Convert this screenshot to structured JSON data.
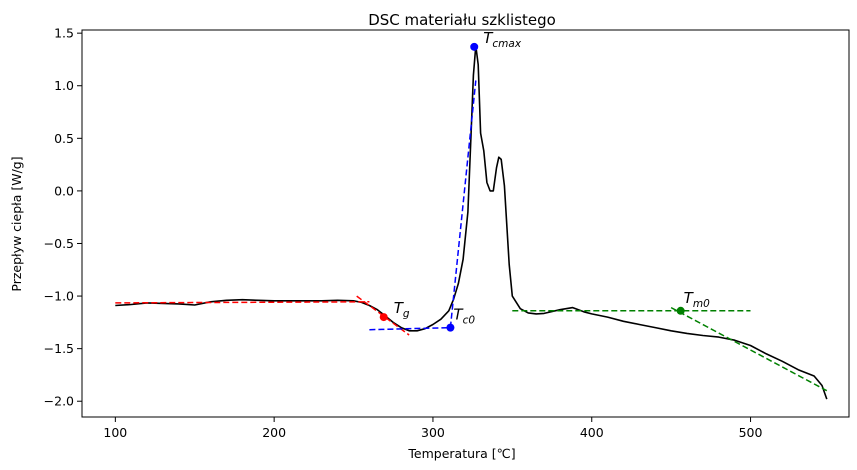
{
  "chart_data": {
    "type": "line",
    "title": "DSC materiału szklistego",
    "xlabel": "Temperatura [℃]",
    "ylabel": "Przepływ ciepła [W/g]",
    "xlim": [
      79,
      562
    ],
    "ylim": [
      -2.15,
      1.53
    ],
    "xticks": [
      100,
      200,
      300,
      400,
      500
    ],
    "yticks": [
      -2.0,
      -1.5,
      -1.0,
      -0.5,
      0.0,
      0.5,
      1.0,
      1.5
    ],
    "xtick_labels": [
      "100",
      "200",
      "300",
      "400",
      "500"
    ],
    "ytick_labels": [
      "−2.0",
      "−1.5",
      "−1.0",
      "−0.5",
      "0.0",
      "0.5",
      "1.0",
      "1.5"
    ],
    "grid": false,
    "series": [
      {
        "color": "#000000",
        "style": "solid",
        "x": [
          100,
          110,
          120,
          130,
          140,
          150,
          160,
          170,
          180,
          190,
          200,
          210,
          220,
          230,
          240,
          250,
          255,
          260,
          265,
          270,
          275,
          280,
          285,
          290,
          295,
          300,
          305,
          310,
          313,
          316,
          319,
          322,
          324,
          325.5,
          327,
          328.5,
          330,
          332,
          334,
          336,
          338,
          340,
          341.5,
          343,
          345,
          348,
          350,
          355,
          360,
          365,
          370,
          380,
          388,
          395,
          400,
          410,
          420,
          430,
          440,
          450,
          460,
          470,
          480,
          490,
          500,
          510,
          520,
          530,
          540,
          545,
          548
        ],
        "y": [
          -1.09,
          -1.08,
          -1.065,
          -1.07,
          -1.075,
          -1.085,
          -1.055,
          -1.04,
          -1.035,
          -1.04,
          -1.045,
          -1.045,
          -1.045,
          -1.045,
          -1.04,
          -1.045,
          -1.06,
          -1.09,
          -1.13,
          -1.19,
          -1.25,
          -1.3,
          -1.33,
          -1.33,
          -1.31,
          -1.27,
          -1.22,
          -1.14,
          -1.03,
          -0.88,
          -0.65,
          -0.2,
          0.55,
          1.1,
          1.38,
          1.2,
          0.55,
          0.38,
          0.08,
          0.0,
          0.0,
          0.22,
          0.32,
          0.3,
          0.05,
          -0.7,
          -1.0,
          -1.12,
          -1.16,
          -1.17,
          -1.165,
          -1.13,
          -1.11,
          -1.15,
          -1.17,
          -1.2,
          -1.24,
          -1.27,
          -1.3,
          -1.33,
          -1.355,
          -1.375,
          -1.39,
          -1.42,
          -1.47,
          -1.55,
          -1.62,
          -1.7,
          -1.76,
          -1.85,
          -1.98
        ]
      },
      {
        "color": "#ff0000",
        "style": "dashed",
        "x": [
          100,
          260
        ],
        "y": [
          -1.065,
          -1.055
        ]
      },
      {
        "color": "#ff0000",
        "style": "dashed",
        "x": [
          252,
          285
        ],
        "y": [
          -1.0,
          -1.37
        ]
      },
      {
        "color": "#0000ff",
        "style": "dashed",
        "x": [
          260,
          312
        ],
        "y": [
          -1.32,
          -1.3
        ]
      },
      {
        "color": "#0000ff",
        "style": "dashed",
        "x": [
          311,
          327
        ],
        "y": [
          -1.3,
          1.05
        ]
      },
      {
        "color": "#008000",
        "style": "dashed",
        "x": [
          350,
          500
        ],
        "y": [
          -1.14,
          -1.14
        ]
      },
      {
        "color": "#008000",
        "style": "dashed",
        "x": [
          450,
          548
        ],
        "y": [
          -1.11,
          -1.9
        ]
      }
    ],
    "points": [
      {
        "x": 269,
        "y": -1.2,
        "color": "#ff0000",
        "label": "T",
        "sub": "g"
      },
      {
        "x": 311,
        "y": -1.3,
        "color": "#0000ff",
        "label": "T",
        "sub": "c0"
      },
      {
        "x": 326,
        "y": 1.37,
        "color": "#0000ff",
        "label": "T",
        "sub": "cmax"
      },
      {
        "x": 456,
        "y": -1.14,
        "color": "#008000",
        "label": "T",
        "sub": "m0"
      }
    ]
  }
}
